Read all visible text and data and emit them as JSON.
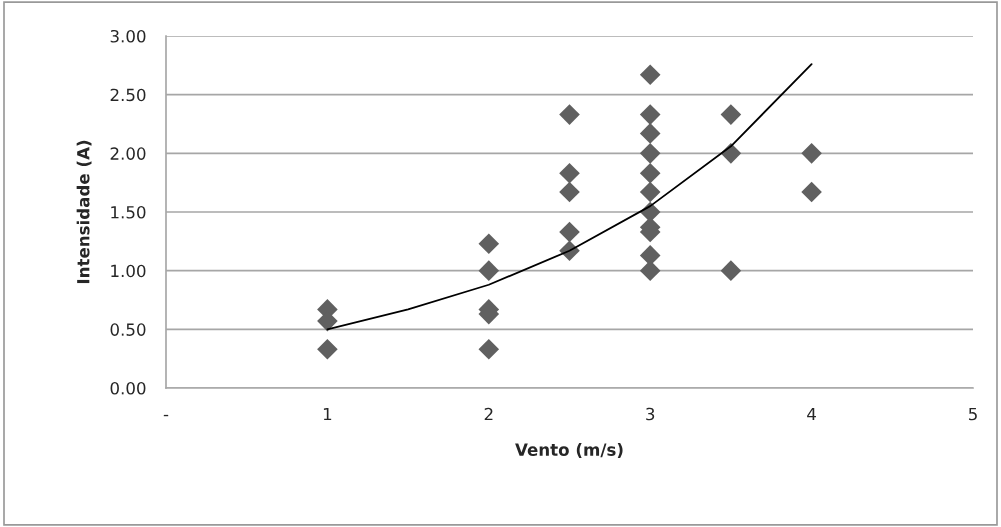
{
  "chart_data": {
    "type": "scatter",
    "xlabel": "Vento (m/s)",
    "ylabel": "Intensidade (A)",
    "xlim": [
      0,
      5
    ],
    "xticks": [
      {
        "value": 0,
        "label": "-"
      },
      1,
      2,
      3,
      4,
      5
    ],
    "ylim": [
      0,
      3
    ],
    "yticks": [
      {
        "value": 0,
        "label": "0.00"
      },
      {
        "value": 0.5,
        "label": "0.50"
      },
      {
        "value": 1,
        "label": "1.00"
      },
      {
        "value": 1.5,
        "label": "1.50"
      },
      {
        "value": 2,
        "label": "2.00"
      },
      {
        "value": 2.5,
        "label": "2.50"
      },
      {
        "value": 3,
        "label": "3.00"
      }
    ],
    "grid": "y",
    "marker": "diamond",
    "series": [
      {
        "color": "#606060",
        "x": [
          1,
          1,
          1,
          2,
          2,
          2,
          2,
          2,
          2.5,
          2.5,
          2.5,
          2.5,
          2.5,
          3,
          3,
          3,
          3,
          3,
          3,
          3,
          3,
          3,
          3,
          3,
          3.5,
          3.5,
          3.5,
          4,
          4
        ],
        "values": [
          0.67,
          0.57,
          0.33,
          1.23,
          1.0,
          0.67,
          0.63,
          0.33,
          2.33,
          1.83,
          1.67,
          1.33,
          1.17,
          2.67,
          2.33,
          2.17,
          2.0,
          1.83,
          1.67,
          1.5,
          1.37,
          1.33,
          1.13,
          1.0,
          2.33,
          2.0,
          1.0,
          2.0,
          1.67
        ]
      },
      {
        "type": "line",
        "color": "#000000",
        "marker": "none",
        "x": [
          1,
          1.5,
          2,
          2.5,
          3,
          3.5,
          4
        ],
        "values": [
          0.5,
          0.67,
          0.88,
          1.17,
          1.55,
          2.06,
          2.76
        ]
      }
    ]
  }
}
